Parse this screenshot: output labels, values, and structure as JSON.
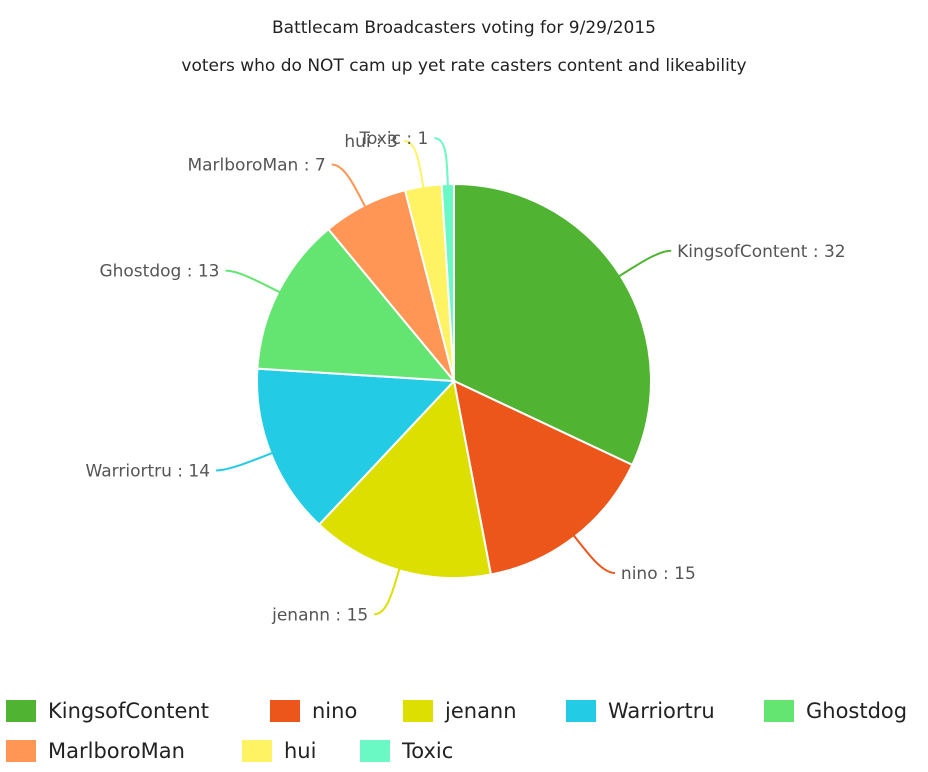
{
  "chart_data": {
    "type": "pie",
    "title": "Battlecam Broadcasters voting for 9/29/2015",
    "subtitle": "voters who do NOT cam up yet rate casters content and likeability",
    "separator": " : ",
    "legend_position": "bottom",
    "slices": [
      {
        "label": "KingsofContent",
        "value": 32,
        "color": "#50b432"
      },
      {
        "label": "nino",
        "value": 15,
        "color": "#ed561b"
      },
      {
        "label": "jenann",
        "value": 15,
        "color": "#dddf00"
      },
      {
        "label": "Warriortru",
        "value": 14,
        "color": "#24cbe5"
      },
      {
        "label": "Ghostdog",
        "value": 13,
        "color": "#64e572"
      },
      {
        "label": "MarlboroMan",
        "value": 7,
        "color": "#ff9655"
      },
      {
        "label": "hui",
        "value": 3,
        "color": "#fff263"
      },
      {
        "label": "Toxic",
        "value": 1,
        "color": "#6af9c4"
      }
    ]
  }
}
